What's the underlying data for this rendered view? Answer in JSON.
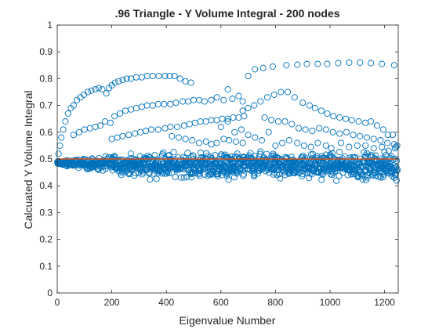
{
  "chart_data": {
    "type": "scatter",
    "title": ".96 Triangle - Y Volume Integral - 200 nodes",
    "xlabel": "Eigenvalue Number",
    "ylabel": "Calcuated Y Volume Integral",
    "xlim": [
      0,
      1250
    ],
    "ylim": [
      0,
      1
    ],
    "xticks": [
      0,
      200,
      400,
      600,
      800,
      1000,
      1200
    ],
    "xtick_labels": [
      "0",
      "200",
      "400",
      "600",
      "800",
      "1000",
      "1200"
    ],
    "yticks": [
      0,
      0.1,
      0.2,
      0.3,
      0.4,
      0.5,
      0.6,
      0.7,
      0.8,
      0.9,
      1
    ],
    "ytick_labels": [
      "0",
      "0.1",
      "0.2",
      "0.3",
      "0.4",
      "0.5",
      "0.6",
      "0.7",
      "0.8",
      "0.9",
      "1"
    ],
    "grid": false,
    "marker": "open-circle",
    "marker_color": "#0072BD",
    "reference_line": {
      "y": 0.5,
      "color": "#D95319"
    },
    "series": [
      {
        "values_note": "",
        "points": [
          [
            1,
            0.49
          ],
          [
            5,
            0.52
          ],
          [
            10,
            0.55
          ],
          [
            15,
            0.58
          ],
          [
            22,
            0.61
          ],
          [
            30,
            0.64
          ],
          [
            40,
            0.67
          ],
          [
            50,
            0.69
          ],
          [
            60,
            0.7
          ],
          [
            72,
            0.72
          ],
          [
            85,
            0.73
          ],
          [
            98,
            0.74
          ],
          [
            112,
            0.75
          ],
          [
            125,
            0.755
          ],
          [
            140,
            0.76
          ],
          [
            152,
            0.765
          ],
          [
            165,
            0.76
          ],
          [
            180,
            0.745
          ],
          [
            190,
            0.765
          ],
          [
            200,
            0.775
          ],
          [
            212,
            0.785
          ],
          [
            225,
            0.79
          ],
          [
            240,
            0.795
          ],
          [
            255,
            0.8
          ],
          [
            270,
            0.8
          ],
          [
            290,
            0.805
          ],
          [
            310,
            0.805
          ],
          [
            330,
            0.81
          ],
          [
            350,
            0.81
          ],
          [
            372,
            0.81
          ],
          [
            395,
            0.81
          ],
          [
            412,
            0.81
          ],
          [
            430,
            0.81
          ],
          [
            450,
            0.8
          ],
          [
            470,
            0.79
          ],
          [
            490,
            0.785
          ],
          [
            60,
            0.59
          ],
          [
            80,
            0.6
          ],
          [
            100,
            0.61
          ],
          [
            120,
            0.615
          ],
          [
            140,
            0.62
          ],
          [
            158,
            0.625
          ],
          [
            175,
            0.64
          ],
          [
            195,
            0.635
          ],
          [
            210,
            0.66
          ],
          [
            230,
            0.67
          ],
          [
            250,
            0.68
          ],
          [
            270,
            0.685
          ],
          [
            290,
            0.69
          ],
          [
            310,
            0.695
          ],
          [
            330,
            0.7
          ],
          [
            350,
            0.7
          ],
          [
            370,
            0.705
          ],
          [
            392,
            0.705
          ],
          [
            415,
            0.705
          ],
          [
            435,
            0.71
          ],
          [
            460,
            0.715
          ],
          [
            480,
            0.715
          ],
          [
            500,
            0.72
          ],
          [
            520,
            0.72
          ],
          [
            540,
            0.715
          ],
          [
            565,
            0.72
          ],
          [
            585,
            0.73
          ],
          [
            610,
            0.72
          ],
          [
            625,
            0.76
          ],
          [
            642,
            0.725
          ],
          [
            665,
            0.735
          ],
          [
            680,
            0.715
          ],
          [
            200,
            0.575
          ],
          [
            220,
            0.58
          ],
          [
            240,
            0.585
          ],
          [
            262,
            0.59
          ],
          [
            285,
            0.595
          ],
          [
            305,
            0.6
          ],
          [
            325,
            0.605
          ],
          [
            345,
            0.61
          ],
          [
            370,
            0.61
          ],
          [
            395,
            0.615
          ],
          [
            415,
            0.62
          ],
          [
            440,
            0.62
          ],
          [
            465,
            0.625
          ],
          [
            485,
            0.63
          ],
          [
            505,
            0.635
          ],
          [
            525,
            0.64
          ],
          [
            545,
            0.64
          ],
          [
            565,
            0.645
          ],
          [
            585,
            0.645
          ],
          [
            605,
            0.65
          ],
          [
            625,
            0.65
          ],
          [
            645,
            0.655
          ],
          [
            665,
            0.655
          ],
          [
            685,
            0.66
          ],
          [
            680,
            0.68
          ],
          [
            700,
            0.69
          ],
          [
            722,
            0.7
          ],
          [
            745,
            0.715
          ],
          [
            770,
            0.73
          ],
          [
            795,
            0.74
          ],
          [
            820,
            0.75
          ],
          [
            845,
            0.75
          ],
          [
            870,
            0.73
          ],
          [
            900,
            0.71
          ],
          [
            925,
            0.7
          ],
          [
            945,
            0.69
          ],
          [
            968,
            0.68
          ],
          [
            990,
            0.67
          ],
          [
            1012,
            0.66
          ],
          [
            1035,
            0.655
          ],
          [
            1058,
            0.65
          ],
          [
            1080,
            0.645
          ],
          [
            1105,
            0.64
          ],
          [
            1130,
            0.635
          ],
          [
            1150,
            0.64
          ],
          [
            1172,
            0.625
          ],
          [
            1195,
            0.61
          ],
          [
            1212,
            0.59
          ],
          [
            1230,
            0.59
          ],
          [
            760,
            0.655
          ],
          [
            785,
            0.645
          ],
          [
            810,
            0.64
          ],
          [
            835,
            0.64
          ],
          [
            860,
            0.63
          ],
          [
            885,
            0.615
          ],
          [
            910,
            0.61
          ],
          [
            935,
            0.605
          ],
          [
            960,
            0.615
          ],
          [
            985,
            0.61
          ],
          [
            1010,
            0.6
          ],
          [
            1035,
            0.595
          ],
          [
            1060,
            0.6
          ],
          [
            1085,
            0.59
          ],
          [
            1110,
            0.585
          ],
          [
            1135,
            0.58
          ],
          [
            1160,
            0.575
          ],
          [
            1185,
            0.57
          ],
          [
            1210,
            0.56
          ],
          [
            1235,
            0.555
          ],
          [
            700,
            0.81
          ],
          [
            725,
            0.835
          ],
          [
            755,
            0.84
          ],
          [
            790,
            0.845
          ],
          [
            840,
            0.85
          ],
          [
            880,
            0.852
          ],
          [
            915,
            0.855
          ],
          [
            955,
            0.855
          ],
          [
            990,
            0.855
          ],
          [
            1030,
            0.858
          ],
          [
            1070,
            0.86
          ],
          [
            1110,
            0.86
          ],
          [
            1150,
            0.858
          ],
          [
            1190,
            0.855
          ],
          [
            1235,
            0.85
          ],
          [
            600,
            0.62
          ],
          [
            625,
            0.64
          ],
          [
            650,
            0.6
          ],
          [
            675,
            0.61
          ],
          [
            700,
            0.59
          ],
          [
            725,
            0.58
          ],
          [
            750,
            0.57
          ],
          [
            775,
            0.6
          ],
          [
            800,
            0.55
          ],
          [
            825,
            0.56
          ],
          [
            850,
            0.57
          ],
          [
            880,
            0.56
          ],
          [
            905,
            0.55
          ],
          [
            930,
            0.545
          ],
          [
            955,
            0.56
          ],
          [
            985,
            0.55
          ],
          [
            1005,
            0.54
          ],
          [
            1040,
            0.56
          ],
          [
            1070,
            0.545
          ],
          [
            1100,
            0.55
          ],
          [
            1130,
            0.55
          ],
          [
            1160,
            0.54
          ],
          [
            1190,
            0.545
          ],
          [
            1215,
            0.53
          ],
          [
            1238,
            0.54
          ],
          [
            420,
            0.585
          ],
          [
            445,
            0.58
          ],
          [
            470,
            0.575
          ],
          [
            495,
            0.57
          ],
          [
            520,
            0.56
          ],
          [
            545,
            0.565
          ],
          [
            565,
            0.555
          ],
          [
            585,
            0.56
          ],
          [
            610,
            0.575
          ],
          [
            630,
            0.57
          ],
          [
            655,
            0.565
          ],
          [
            680,
            0.56
          ],
          [
            1246,
            0.55
          ],
          [
            1242,
            0.545
          ],
          [
            1240,
            0.44
          ],
          [
            1244,
            0.42
          ],
          [
            1248,
            0.46
          ],
          [
            1236,
            0.43
          ],
          [
            1228,
            0.45
          ]
        ]
      }
    ]
  }
}
